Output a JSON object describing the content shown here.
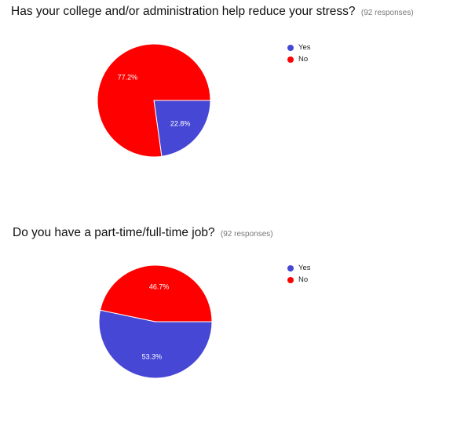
{
  "chart_data": [
    {
      "type": "pie",
      "title": "Has your college and/or administration help reduce your stress?",
      "subtitle": "(92 responses)",
      "categories": [
        "Yes",
        "No"
      ],
      "values": [
        22.8,
        77.2
      ],
      "labels": [
        "22.8%",
        "77.2%"
      ],
      "colors": [
        "#4747d6",
        "#ff0000"
      ],
      "legend_position": "right"
    },
    {
      "type": "pie",
      "title": "Do you have a part-time/full-time job?",
      "subtitle": "(92 responses)",
      "categories": [
        "Yes",
        "No"
      ],
      "values": [
        53.3,
        46.7
      ],
      "labels": [
        "53.3%",
        "46.7%"
      ],
      "colors": [
        "#4747d6",
        "#ff0000"
      ],
      "legend_position": "right"
    }
  ]
}
